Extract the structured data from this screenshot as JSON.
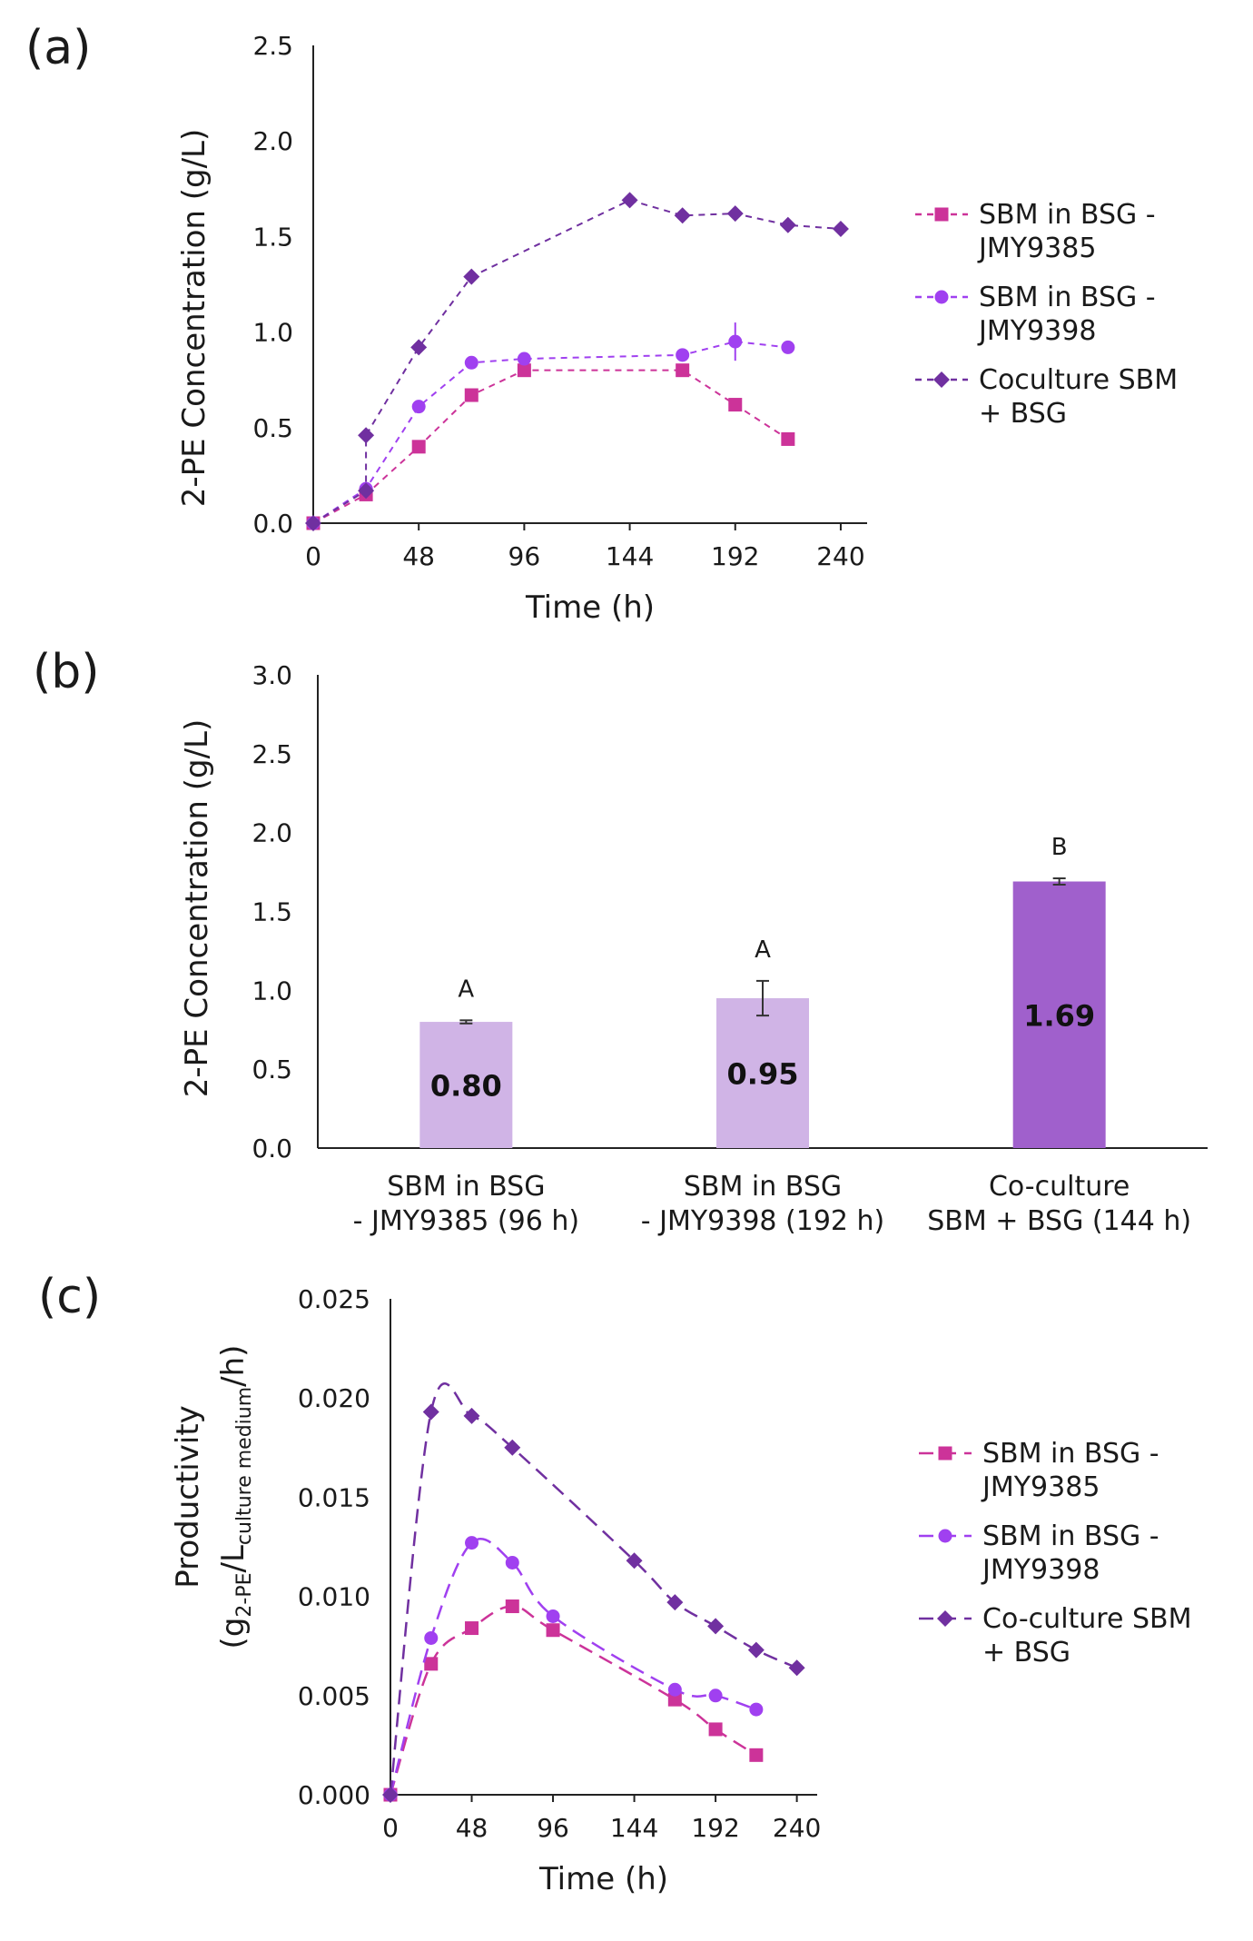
{
  "chart_data": [
    {
      "panel": "(a)",
      "type": "line",
      "xlabel": "Time (h)",
      "ylabel": "2-PE Concentration (g/L)",
      "xlim": [
        0,
        252
      ],
      "ylim": [
        0,
        2.5
      ],
      "xticks": [
        0,
        48,
        96,
        144,
        192,
        240
      ],
      "yticks": [
        "0.0",
        "0.5",
        "1.0",
        "1.5",
        "2.0",
        "2.5"
      ],
      "series": [
        {
          "name": "SBM in BSG - JMY9385",
          "legend_lines": [
            "SBM in BSG -",
            "JMY9385"
          ],
          "color": "#cc3399",
          "marker": "square",
          "x": [
            0,
            24,
            48,
            72,
            96,
            168,
            192,
            216
          ],
          "y": [
            0,
            0.15,
            0.4,
            0.67,
            0.8,
            0.8,
            0.62,
            0.44
          ]
        },
        {
          "name": "SBM in BSG - JMY9398",
          "legend_lines": [
            "SBM in BSG -",
            "JMY9398"
          ],
          "color": "#a040f0",
          "marker": "circle",
          "x": [
            0,
            24,
            48,
            72,
            96,
            168,
            192,
            216
          ],
          "y": [
            0,
            0.18,
            0.61,
            0.84,
            0.86,
            0.88,
            0.95,
            0.92
          ],
          "errors": [
            0,
            0,
            0,
            0,
            0,
            0,
            0.1,
            0
          ]
        },
        {
          "name": "Coculture SBM + BSG",
          "legend_lines": [
            "Coculture SBM",
            "+ BSG"
          ],
          "color": "#7030a0",
          "marker": "diamond",
          "x": [
            0,
            24,
            24,
            48,
            72,
            144,
            168,
            192,
            216,
            240
          ],
          "y": [
            0,
            0.17,
            0.46,
            0.92,
            1.29,
            1.69,
            1.61,
            1.62,
            1.56,
            1.54
          ]
        }
      ]
    },
    {
      "panel": "(b)",
      "type": "bar",
      "ylabel": "2-PE Concentration (g/L)",
      "ylim": [
        0,
        3.0
      ],
      "yticks": [
        "0.0",
        "0.5",
        "1.0",
        "1.5",
        "2.0",
        "2.5",
        "3.0"
      ],
      "categories": [
        [
          "SBM in BSG",
          "- JMY9385 (96 h)"
        ],
        [
          "SBM in BSG",
          "- JMY9398 (192 h)"
        ],
        [
          "Co-culture",
          "SBM + BSG (144 h)"
        ]
      ],
      "values": [
        0.8,
        0.95,
        1.69
      ],
      "value_labels": [
        "0.80",
        "0.95",
        "1.69"
      ],
      "errors": [
        0.01,
        0.11,
        0.02
      ],
      "significance": [
        "A",
        "A",
        "B"
      ],
      "colors": [
        "#d0b4e6",
        "#d0b4e6",
        "#a060cc"
      ]
    },
    {
      "panel": "(c)",
      "type": "line",
      "xlabel": "Time (h)",
      "ylabel_line1": "Productivity",
      "ylabel_line2": {
        "open": "(g",
        "sub1": "2-PE",
        "mid": "/L",
        "sub2": "culture medium",
        "close": "/h)"
      },
      "xlim": [
        0,
        252
      ],
      "ylim": [
        0,
        0.025
      ],
      "xticks": [
        0,
        48,
        96,
        144,
        192,
        240
      ],
      "yticks": [
        "0.000",
        "0.005",
        "0.010",
        "0.015",
        "0.020",
        "0.025"
      ],
      "series": [
        {
          "name": "SBM in BSG - JMY9385",
          "legend_lines": [
            "SBM in BSG -",
            "JMY9385"
          ],
          "color": "#cc3399",
          "marker": "square",
          "x": [
            0,
            24,
            48,
            72,
            96,
            168,
            192,
            216
          ],
          "y": [
            0,
            0.0066,
            0.0084,
            0.0095,
            0.0083,
            0.0048,
            0.0033,
            0.002
          ]
        },
        {
          "name": "SBM in BSG - JMY9398",
          "legend_lines": [
            "SBM in BSG -",
            "JMY9398"
          ],
          "color": "#a040f0",
          "marker": "circle",
          "x": [
            0,
            24,
            48,
            72,
            96,
            168,
            192,
            216
          ],
          "y": [
            0,
            0.0079,
            0.0127,
            0.0117,
            0.009,
            0.0053,
            0.005,
            0.0043
          ]
        },
        {
          "name": "Co-culture SBM + BSG",
          "legend_lines": [
            "Co-culture SBM",
            "+ BSG"
          ],
          "color": "#7030a0",
          "marker": "diamond",
          "x": [
            0,
            24,
            48,
            72,
            144,
            168,
            192,
            216,
            240
          ],
          "y": [
            0,
            0.0193,
            0.0191,
            0.0175,
            0.0118,
            0.0097,
            0.0085,
            0.0073,
            0.0064
          ]
        }
      ]
    }
  ]
}
